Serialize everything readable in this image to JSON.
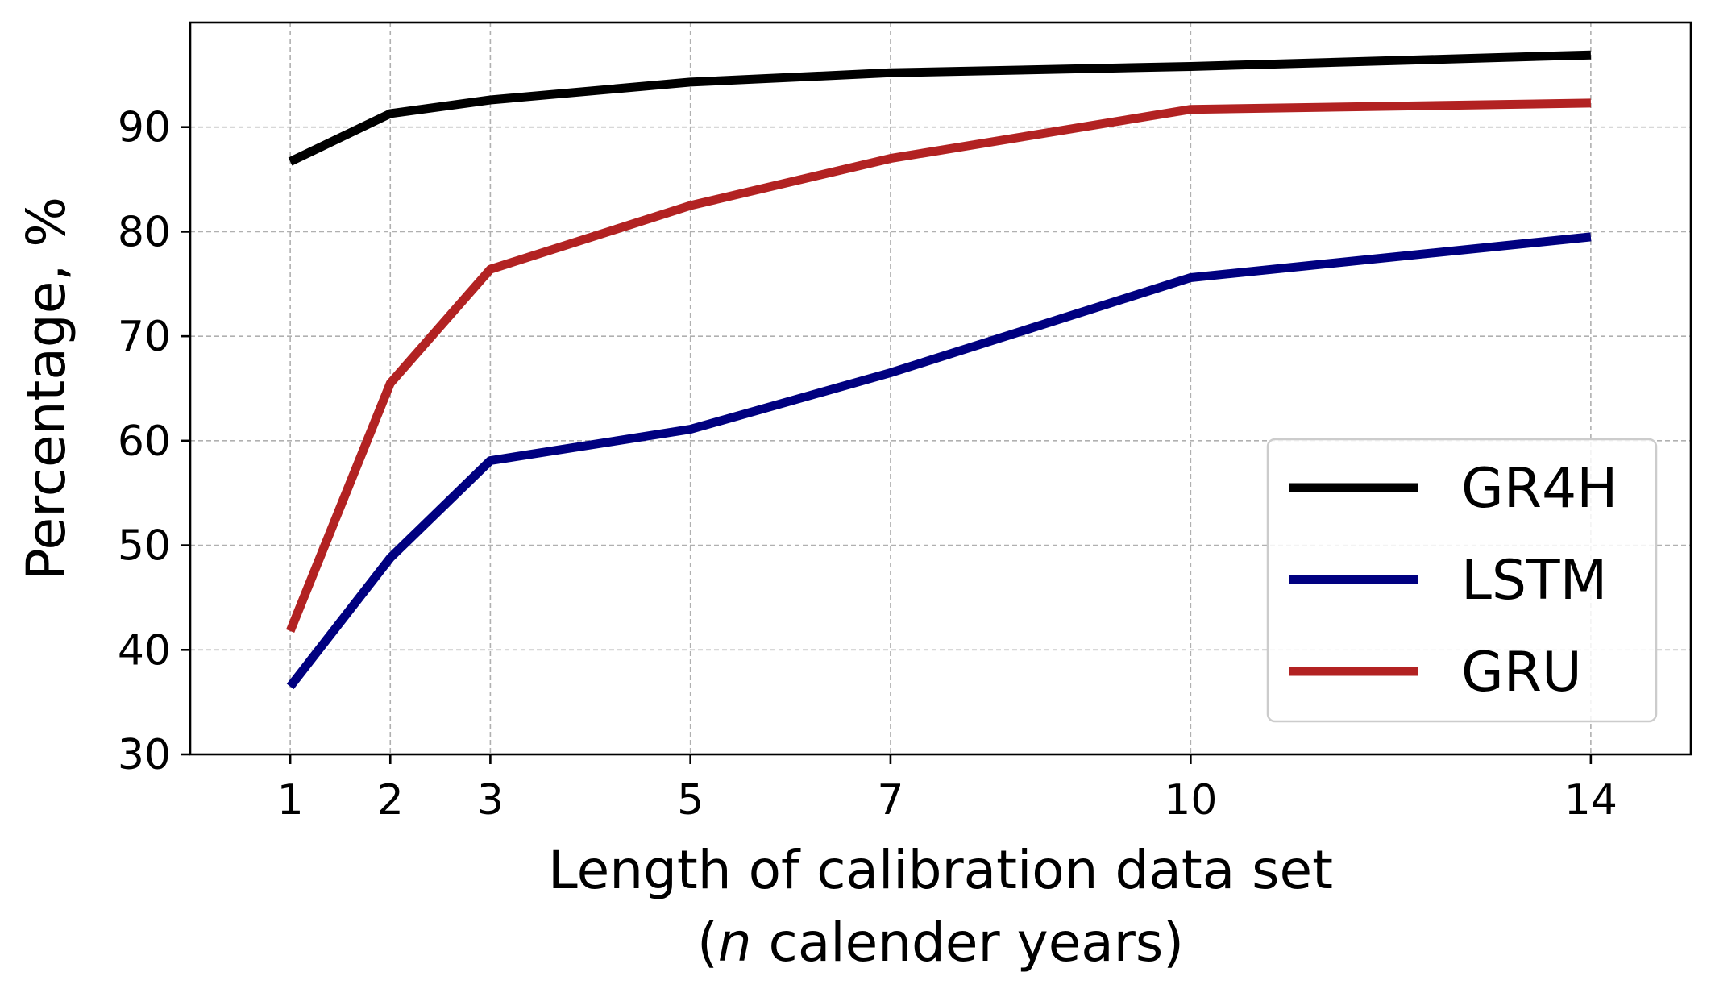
{
  "chart_data": {
    "type": "line",
    "xlabel_line1": "Length of calibration data set",
    "xlabel_line2_prefix": "(",
    "xlabel_line2_italic": "n",
    "xlabel_line2_suffix": " calender years)",
    "ylabel": "Percentage, %",
    "x": [
      1,
      2,
      3,
      5,
      7,
      10,
      14
    ],
    "xticks": [
      "1",
      "2",
      "3",
      "5",
      "7",
      "10",
      "14"
    ],
    "yticks": [
      "30",
      "40",
      "50",
      "60",
      "70",
      "80",
      "90"
    ],
    "xlim": [
      0,
      15
    ],
    "ylim": [
      30,
      100
    ],
    "grid": true,
    "legend_position": "lower-right",
    "series": [
      {
        "name": "GR4H",
        "color": "#000000",
        "values": [
          86.7,
          91.3,
          92.6,
          94.3,
          95.2,
          95.8,
          96.9
        ]
      },
      {
        "name": "LSTM",
        "color": "#000080",
        "values": [
          36.5,
          48.8,
          58.1,
          61.1,
          66.5,
          75.6,
          79.5
        ]
      },
      {
        "name": "GRU",
        "color": "#b22222",
        "values": [
          41.8,
          65.5,
          76.4,
          82.5,
          87.0,
          91.7,
          92.3
        ]
      }
    ]
  }
}
